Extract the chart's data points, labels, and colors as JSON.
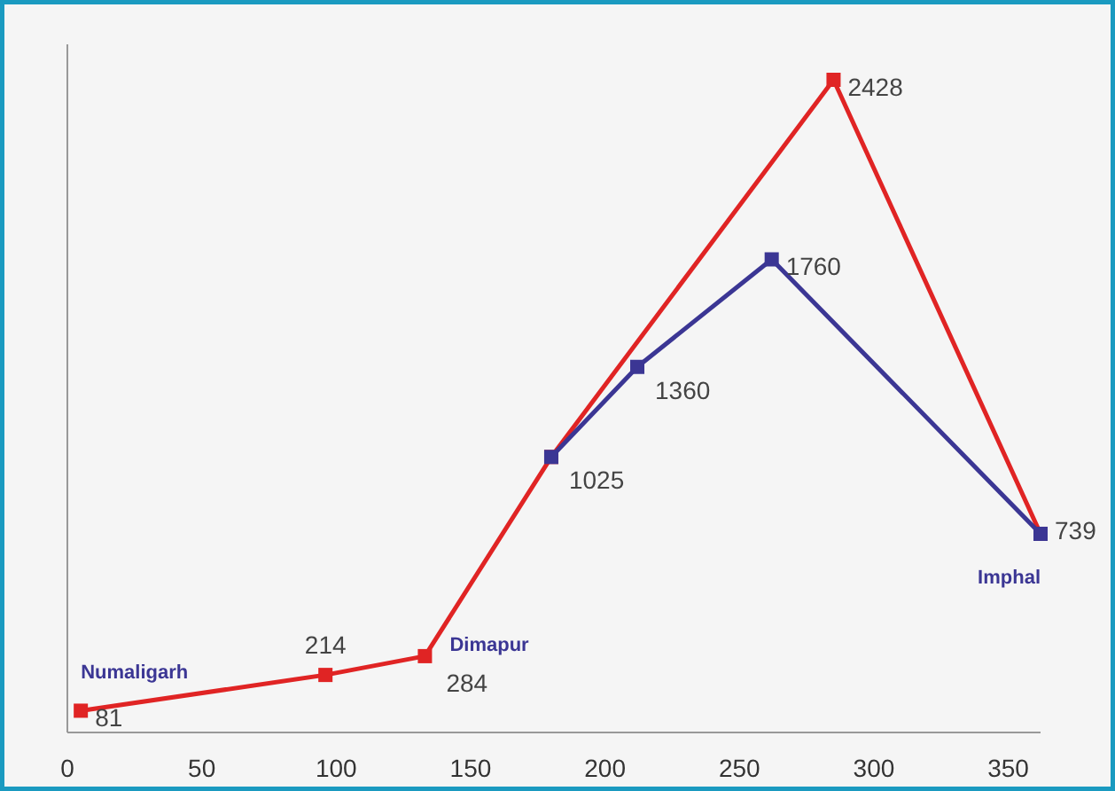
{
  "chart_data": {
    "type": "line",
    "marker": "square",
    "line_style": "solid",
    "grid": false,
    "tick_labels": "x",
    "xlim": [
      0,
      362
    ],
    "xticks": [
      0,
      50,
      100,
      150,
      200,
      250,
      300,
      350
    ],
    "series": [
      {
        "color": "#e02424",
        "x": [
          5,
          96,
          133,
          180,
          285,
          362
        ],
        "values": [
          81,
          214,
          284,
          1025,
          2428,
          739
        ],
        "value_labels": [
          "81",
          "214",
          "284",
          "1025",
          "2428",
          "739"
        ]
      },
      {
        "color": "#3b3694",
        "x": [
          180,
          212,
          262,
          362
        ],
        "values": [
          1025,
          1360,
          1760,
          739
        ],
        "value_labels": [
          null,
          "1360",
          "1760",
          null
        ]
      }
    ],
    "annotations": [
      {
        "text": "Numaligarh",
        "x": 5,
        "y": 81
      },
      {
        "text": "Dimapur",
        "x": 133,
        "y": 284
      },
      {
        "text": "Imphal",
        "x": 362,
        "y": 739
      }
    ]
  }
}
